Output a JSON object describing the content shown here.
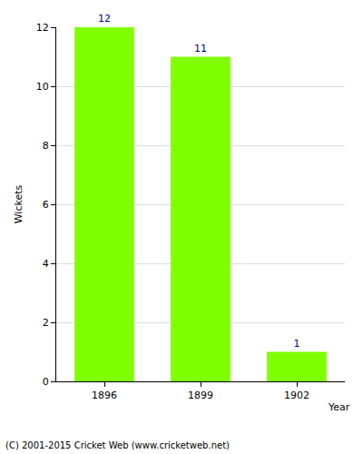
{
  "chart_data": {
    "type": "bar",
    "categories": [
      "1896",
      "1899",
      "1902"
    ],
    "values": [
      12,
      11,
      1
    ],
    "color": "#80ff00",
    "xlabel": "Year",
    "ylabel": "Wickets",
    "ylim": [
      0,
      12
    ],
    "yticks": [
      0,
      2,
      4,
      6,
      8,
      10,
      12
    ],
    "grid": true,
    "data_labels": true,
    "annotations": [
      "(C) 2001-2015 Cricket Web (www.cricketweb.net)"
    ]
  }
}
